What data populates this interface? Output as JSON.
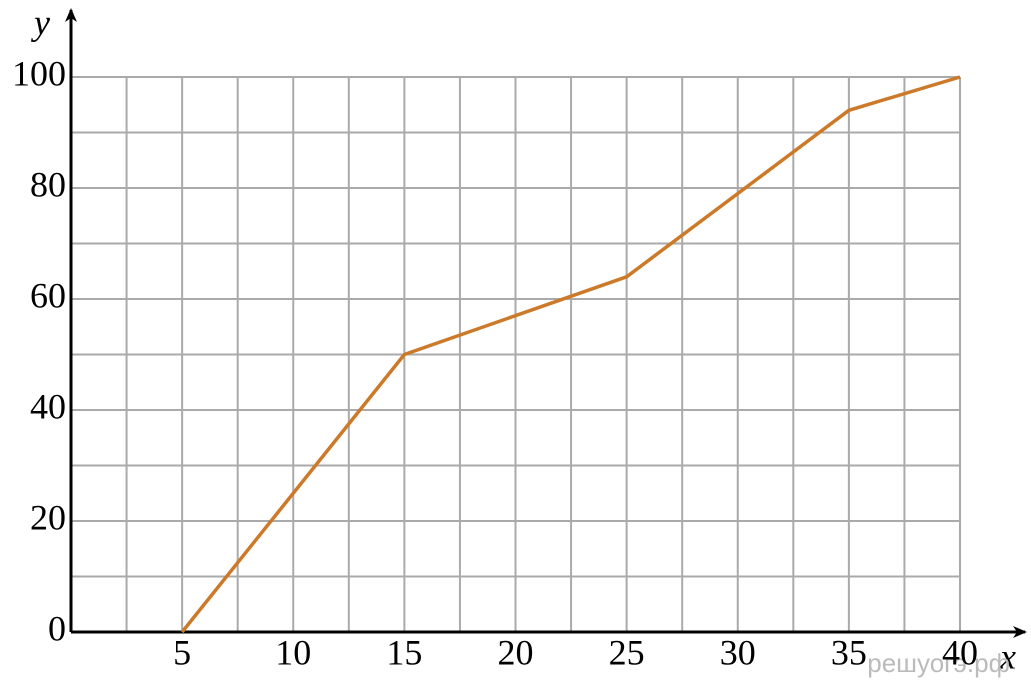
{
  "chart_data": {
    "type": "line",
    "x_label": "x",
    "y_label": "y",
    "x": [
      5,
      15,
      25,
      35,
      40
    ],
    "values": [
      0,
      50,
      64,
      94,
      100
    ],
    "color": "#cc7a29",
    "xlim": [
      0,
      40
    ],
    "ylim": [
      0,
      100
    ],
    "xticks": [
      5,
      10,
      15,
      20,
      25,
      30,
      35,
      40
    ],
    "yticks": [
      0,
      20,
      40,
      60,
      80,
      100
    ],
    "x_minor_ticks": [
      2.5,
      7.5,
      12.5,
      17.5,
      22.5,
      27.5,
      32.5,
      37.5
    ],
    "y_minor_ticks": [
      10,
      30,
      50,
      70,
      90
    ],
    "grid": true,
    "watermark": "решуогэ.рф"
  }
}
